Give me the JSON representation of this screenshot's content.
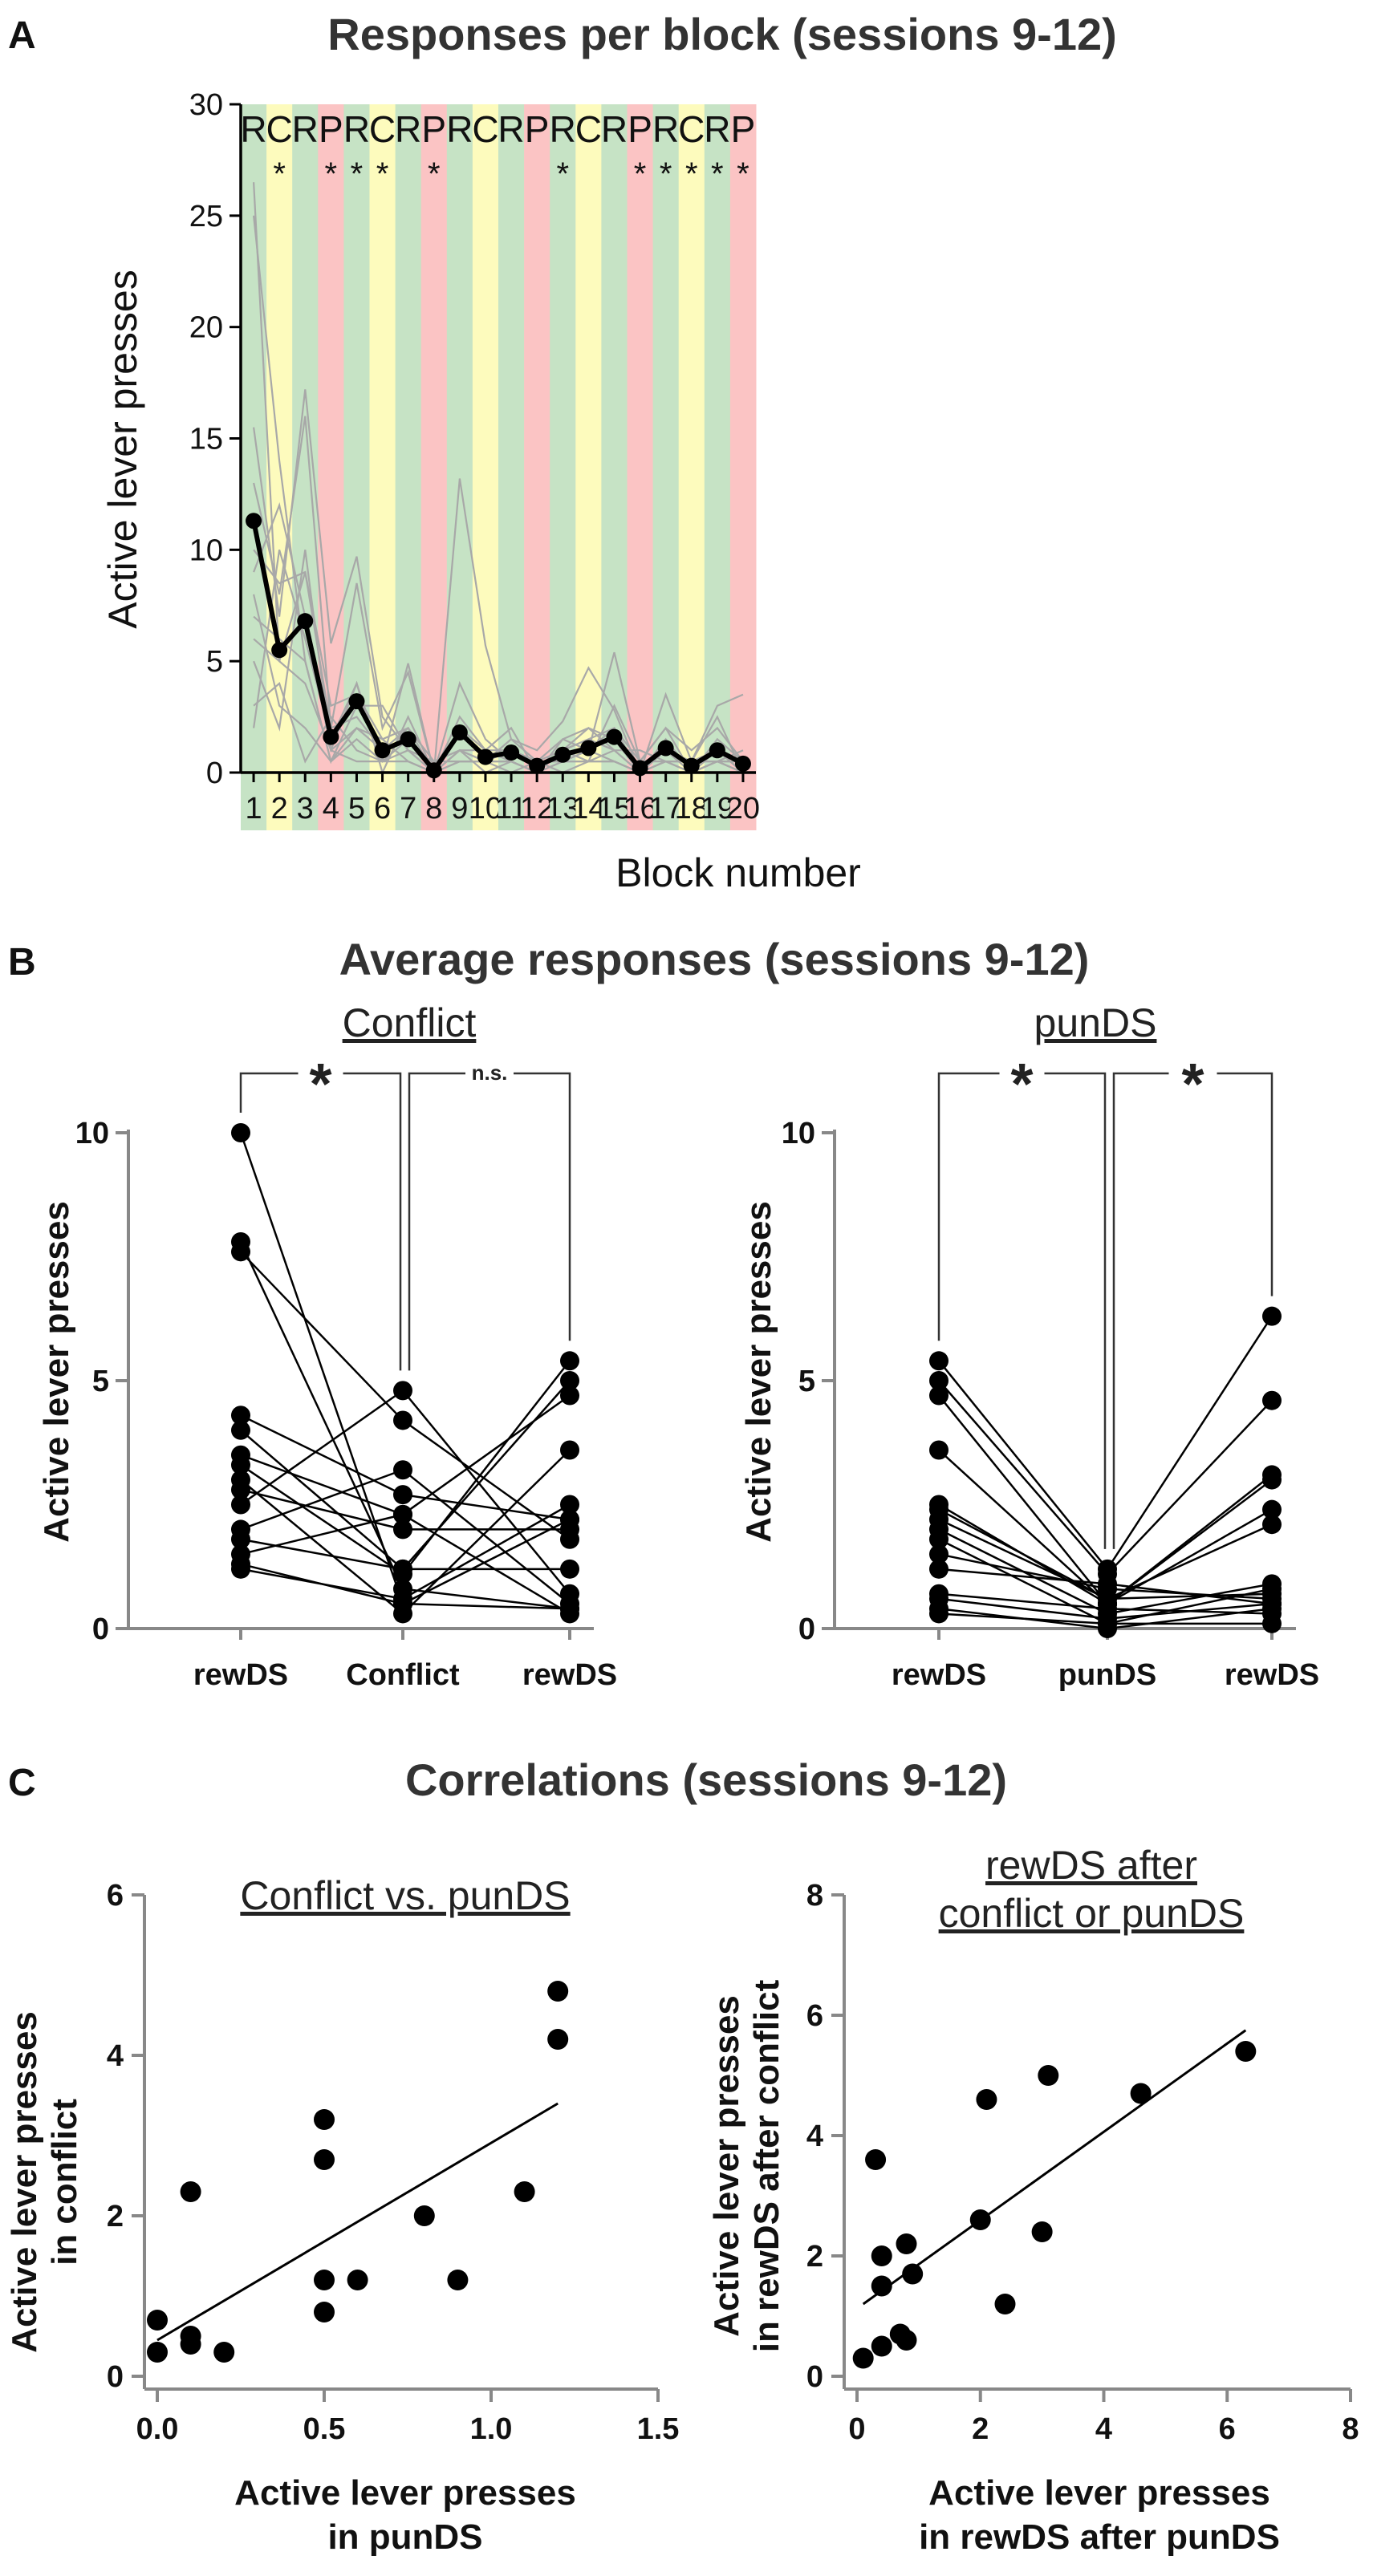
{
  "colors": {
    "reward_bg": "#c6e3c5",
    "conflict_bg": "#fdfbbd",
    "punish_bg": "#fbc4c4",
    "individual_line": "#a8a8a8",
    "mean_line": "#000000",
    "axis": "#888888"
  },
  "panel_a": {
    "label": "A",
    "chart_data": {
      "type": "line",
      "title": "Responses per block (sessions 9-12)",
      "xlabel": "Block number",
      "ylabel": "Active lever presses",
      "ylim": [
        0,
        30
      ],
      "yticks": [
        "0",
        "5",
        "10",
        "15",
        "20",
        "25",
        "30"
      ],
      "blocks": [
        "1",
        "2",
        "3",
        "4",
        "5",
        "6",
        "7",
        "8",
        "9",
        "10",
        "11",
        "12",
        "13",
        "14",
        "15",
        "16",
        "17",
        "18",
        "19",
        "20"
      ],
      "block_types": [
        "R",
        "C",
        "R",
        "P",
        "R",
        "C",
        "R",
        "P",
        "R",
        "C",
        "R",
        "P",
        "R",
        "C",
        "R",
        "P",
        "R",
        "C",
        "R",
        "P"
      ],
      "block_stars": [
        "",
        "*",
        "",
        "*",
        "*",
        "*",
        "",
        "*",
        "",
        "",
        "",
        "",
        "*",
        "",
        "",
        "*",
        "*",
        "*",
        "*",
        "*"
      ],
      "mean": [
        11.3,
        5.5,
        6.8,
        1.6,
        3.2,
        1.0,
        1.5,
        0.1,
        1.8,
        0.7,
        0.9,
        0.3,
        0.8,
        1.1,
        1.6,
        0.2,
        1.1,
        0.3,
        1.0,
        0.4
      ],
      "individuals": [
        [
          26.5,
          5.0,
          4.0,
          1.0,
          4.0,
          0.5,
          1.5,
          0.0,
          1.0,
          1.0,
          0.5,
          0.0,
          1.0,
          2.0,
          1.0,
          0.0,
          1.0,
          0.0,
          0.5,
          0.0
        ],
        [
          25.0,
          14.0,
          5.0,
          0.5,
          2.0,
          1.0,
          2.0,
          0.5,
          1.0,
          0.5,
          1.0,
          0.5,
          1.5,
          1.0,
          2.0,
          0.5,
          2.0,
          1.0,
          2.0,
          0.5
        ],
        [
          15.5,
          7.0,
          17.2,
          5.8,
          9.7,
          2.5,
          1.0,
          0.0,
          2.0,
          0.5,
          0.5,
          0.0,
          0.5,
          1.0,
          0.5,
          0.0,
          0.5,
          0.0,
          0.5,
          0.0
        ],
        [
          13.0,
          8.0,
          16.0,
          2.0,
          8.5,
          2.0,
          4.5,
          0.0,
          13.2,
          5.7,
          1.5,
          1.0,
          2.3,
          4.7,
          2.8,
          0.0,
          3.5,
          0.5,
          3.0,
          3.5
        ],
        [
          10.0,
          8.5,
          9.0,
          3.0,
          3.5,
          1.5,
          0.5,
          0.0,
          1.0,
          0.5,
          1.5,
          0.5,
          0.5,
          1.0,
          5.4,
          0.5,
          2.0,
          0.0,
          1.5,
          0.5
        ],
        [
          9.0,
          12.0,
          7.0,
          1.0,
          2.0,
          1.5,
          2.0,
          0.0,
          4.0,
          1.5,
          0.5,
          0.0,
          1.0,
          1.5,
          1.0,
          0.0,
          1.0,
          0.5,
          2.5,
          0.0
        ],
        [
          7.0,
          6.0,
          5.0,
          0.5,
          3.0,
          3.0,
          1.0,
          0.0,
          0.5,
          0.5,
          1.0,
          0.5,
          0.5,
          0.5,
          3.0,
          0.5,
          0.5,
          0.5,
          0.5,
          0.5
        ],
        [
          5.0,
          2.0,
          10.0,
          1.0,
          0.5,
          0.5,
          4.9,
          0.0,
          1.0,
          0.0,
          0.5,
          0.0,
          1.0,
          0.5,
          0.5,
          0.0,
          1.5,
          0.0,
          0.5,
          0.5
        ],
        [
          3.0,
          4.0,
          0.5,
          2.5,
          1.0,
          0.5,
          1.0,
          0.5,
          0.5,
          0.5,
          0.0,
          0.5,
          0.0,
          0.5,
          1.0,
          1.0,
          0.5,
          0.5,
          0.5,
          1.0
        ],
        [
          2.0,
          10.0,
          6.0,
          1.5,
          4.0,
          0.0,
          2.5,
          0.0,
          2.5,
          1.0,
          2.0,
          0.0,
          1.5,
          2.0,
          1.5,
          0.0,
          1.0,
          0.5,
          1.0,
          0.0
        ],
        [
          8.0,
          3.0,
          2.0,
          0.5,
          1.5,
          0.5,
          0.5,
          0.0,
          0.5,
          0.5,
          0.5,
          0.0,
          0.5,
          0.5,
          0.5,
          0.0,
          0.5,
          0.0,
          0.5,
          0.0
        ],
        [
          6.0,
          5.0,
          9.0,
          2.0,
          2.5,
          1.0,
          1.5,
          0.0,
          2.0,
          1.0,
          1.0,
          0.5,
          1.0,
          1.5,
          2.0,
          0.0,
          1.0,
          0.0,
          1.0,
          0.0
        ]
      ]
    }
  },
  "panel_b": {
    "label": "B",
    "title": "Average responses (sessions 9-12)",
    "charts": [
      {
        "type": "paired_dot",
        "subtitle": "Conflict",
        "ylabel": "Active lever presses",
        "ylim": [
          0,
          10
        ],
        "yticks": [
          "0",
          "5",
          "10"
        ],
        "categories": [
          "rewDS",
          "Conflict",
          "rewDS"
        ],
        "significance": [
          "*",
          "n.s."
        ],
        "pairs": [
          [
            10.0,
            0.5,
            2.2
          ],
          [
            7.8,
            0.8,
            0.4
          ],
          [
            7.6,
            4.2,
            1.8
          ],
          [
            4.3,
            2.7,
            2.2
          ],
          [
            4.0,
            1.2,
            5.0
          ],
          [
            3.5,
            2.3,
            4.7
          ],
          [
            3.3,
            1.1,
            5.4
          ],
          [
            3.0,
            0.3,
            3.6
          ],
          [
            2.8,
            2.0,
            2.0
          ],
          [
            2.5,
            4.8,
            0.7
          ],
          [
            2.0,
            3.2,
            0.5
          ],
          [
            1.8,
            1.2,
            1.2
          ],
          [
            1.5,
            2.3,
            0.3
          ],
          [
            1.3,
            0.5,
            0.4
          ],
          [
            1.2,
            0.6,
            2.5
          ]
        ]
      },
      {
        "type": "paired_dot",
        "subtitle": "punDS",
        "ylabel": "Active lever presses",
        "ylim": [
          0,
          10
        ],
        "yticks": [
          "0",
          "5",
          "10"
        ],
        "categories": [
          "rewDS",
          "punDS",
          "rewDS"
        ],
        "significance": [
          "*",
          "*"
        ],
        "pairs": [
          [
            5.4,
            1.2,
            6.3
          ],
          [
            5.0,
            1.1,
            4.6
          ],
          [
            4.7,
            0.5,
            3.1
          ],
          [
            3.6,
            0.5,
            3.0
          ],
          [
            2.5,
            0.5,
            2.4
          ],
          [
            2.2,
            0.6,
            2.1
          ],
          [
            2.0,
            0.3,
            0.9
          ],
          [
            1.8,
            0.1,
            0.8
          ],
          [
            1.5,
            0.8,
            0.6
          ],
          [
            1.2,
            0.9,
            0.5
          ],
          [
            0.7,
            0.4,
            0.3
          ],
          [
            0.6,
            0.2,
            0.5
          ],
          [
            0.4,
            0.0,
            0.4
          ],
          [
            0.3,
            0.1,
            0.1
          ],
          [
            2.4,
            0.6,
            0.7
          ]
        ]
      }
    ]
  },
  "panel_c": {
    "label": "C",
    "title": "Correlations (sessions 9-12)",
    "charts": [
      {
        "type": "scatter",
        "subtitle": "Conflict vs. punDS",
        "xlabel_lines": [
          "Active lever presses",
          "in punDS"
        ],
        "ylabel_lines": [
          "Active lever presses",
          "in conflict"
        ],
        "xlim": [
          0,
          1.5
        ],
        "ylim": [
          0,
          6
        ],
        "xticks": [
          "0.0",
          "0.5",
          "1.0",
          "1.5"
        ],
        "yticks": [
          "0",
          "2",
          "4",
          "6"
        ],
        "points": [
          [
            0.0,
            0.7
          ],
          [
            0.0,
            0.3
          ],
          [
            0.1,
            0.5
          ],
          [
            0.1,
            0.4
          ],
          [
            0.1,
            2.3
          ],
          [
            0.2,
            0.3
          ],
          [
            0.5,
            3.2
          ],
          [
            0.5,
            2.7
          ],
          [
            0.5,
            1.2
          ],
          [
            0.5,
            0.8
          ],
          [
            0.6,
            1.2
          ],
          [
            0.8,
            2.0
          ],
          [
            0.9,
            1.2
          ],
          [
            1.1,
            2.3
          ],
          [
            1.2,
            4.8
          ],
          [
            1.2,
            4.2
          ]
        ],
        "fit": [
          [
            0.0,
            0.45
          ],
          [
            1.2,
            3.4
          ]
        ]
      },
      {
        "type": "scatter",
        "subtitle_lines": [
          "rewDS after",
          "conflict or punDS"
        ],
        "xlabel_lines": [
          "Active lever presses",
          "in rewDS after punDS"
        ],
        "ylabel_lines": [
          "Active lever presses",
          "in rewDS after conflict"
        ],
        "xlim": [
          0,
          8
        ],
        "ylim": [
          0,
          8
        ],
        "xticks": [
          "0",
          "2",
          "4",
          "6",
          "8"
        ],
        "yticks": [
          "0",
          "2",
          "4",
          "6",
          "8"
        ],
        "points": [
          [
            0.1,
            0.3
          ],
          [
            0.3,
            3.6
          ],
          [
            0.4,
            2.0
          ],
          [
            0.4,
            1.5
          ],
          [
            0.4,
            0.5
          ],
          [
            0.7,
            0.7
          ],
          [
            0.8,
            0.6
          ],
          [
            0.8,
            2.2
          ],
          [
            0.9,
            1.7
          ],
          [
            2.0,
            2.6
          ],
          [
            2.1,
            4.6
          ],
          [
            2.4,
            1.2
          ],
          [
            3.0,
            2.4
          ],
          [
            3.1,
            5.0
          ],
          [
            4.6,
            4.7
          ],
          [
            6.3,
            5.4
          ]
        ],
        "fit": [
          [
            0.1,
            1.2
          ],
          [
            6.3,
            5.75
          ]
        ]
      }
    ]
  }
}
